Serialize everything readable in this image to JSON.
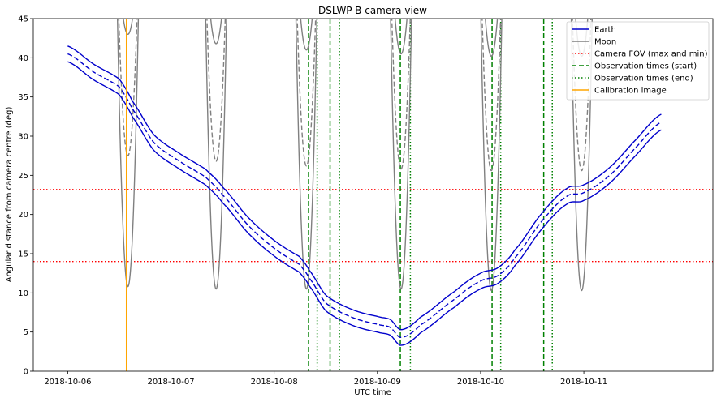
{
  "chart_data": {
    "type": "line",
    "title": "DSLWP-B camera view",
    "xlabel": "UTC time",
    "ylabel": "Angular distance from camera centre (deg)",
    "xlim": [
      "2018-10-05 16:00",
      "2018-10-12 06:00"
    ],
    "ylim": [
      0,
      45
    ],
    "xticks": [
      "2018-10-06",
      "2018-10-07",
      "2018-10-08",
      "2018-10-09",
      "2018-10-10",
      "2018-10-11"
    ],
    "yticks": [
      0,
      5,
      10,
      15,
      20,
      25,
      30,
      35,
      40,
      45
    ],
    "grid": false,
    "legend_position": "top-right",
    "legend": [
      {
        "label": "Earth",
        "color": "#0000cc",
        "style": "solid"
      },
      {
        "label": "Moon",
        "color": "#808080",
        "style": "solid"
      },
      {
        "label": "Camera FOV (max and min)",
        "color": "#ff0000",
        "style": "dotted"
      },
      {
        "label": "Observation times (start)",
        "color": "#008000",
        "style": "dashed"
      },
      {
        "label": "Observation times (end)",
        "color": "#008000",
        "style": "dotted"
      },
      {
        "label": "Calibration image",
        "color": "#ffa500",
        "style": "solid"
      }
    ],
    "camera_fov_deg": [
      23.2,
      14.0
    ],
    "calibration_image_time": "2018-10-06 13:40",
    "observation_start_times": [
      "2018-10-08 08:00",
      "2018-10-08 13:00",
      "2018-10-09 05:20",
      "2018-10-10 02:40",
      "2018-10-10 14:40"
    ],
    "observation_end_times": [
      "2018-10-08 10:00",
      "2018-10-08 15:10",
      "2018-10-09 07:40",
      "2018-10-10 04:40",
      "2018-10-10 16:40"
    ],
    "earth_centre": [
      [
        "2018-10-06 00:00",
        40.5
      ],
      [
        "2018-10-06 06:00",
        38.2
      ],
      [
        "2018-10-06 12:00",
        36.3
      ],
      [
        "2018-10-06 15:00",
        33.5
      ],
      [
        "2018-10-06 20:00",
        29.2
      ],
      [
        "2018-10-07 02:00",
        26.8
      ],
      [
        "2018-10-07 08:00",
        24.8
      ],
      [
        "2018-10-07 12:00",
        22.5
      ],
      [
        "2018-10-07 18:00",
        18.6
      ],
      [
        "2018-10-08 00:00",
        15.7
      ],
      [
        "2018-10-08 06:00",
        13.6
      ],
      [
        "2018-10-08 08:00",
        12.0
      ],
      [
        "2018-10-08 12:00",
        8.7
      ],
      [
        "2018-10-08 18:00",
        6.9
      ],
      [
        "2018-10-09 00:00",
        6.0
      ],
      [
        "2018-10-09 03:00",
        5.6
      ],
      [
        "2018-10-09 05:30",
        4.3
      ],
      [
        "2018-10-09 10:00",
        5.9
      ],
      [
        "2018-10-09 18:00",
        9.2
      ],
      [
        "2018-10-10 00:00",
        11.5
      ],
      [
        "2018-10-10 04:00",
        12.2
      ],
      [
        "2018-10-10 08:00",
        14.5
      ],
      [
        "2018-10-10 14:00",
        19.0
      ],
      [
        "2018-10-10 20:00",
        22.3
      ],
      [
        "2018-10-11 00:00",
        22.8
      ],
      [
        "2018-10-11 06:00",
        25.0
      ],
      [
        "2018-10-11 12:00",
        28.5
      ],
      [
        "2018-10-11 18:00",
        31.8
      ]
    ],
    "earth_band_halfwidth_deg": 1.0,
    "moon_dip_minima": [
      [
        "2018-10-06 14:00",
        10.8
      ],
      [
        "2018-10-07 10:30",
        10.5
      ],
      [
        "2018-10-08 07:30",
        10.5
      ],
      [
        "2018-10-09 05:30",
        10.5
      ],
      [
        "2018-10-10 02:30",
        10.3
      ],
      [
        "2018-10-10 23:30",
        10.3
      ]
    ],
    "moon_dashed_minima": [
      [
        "2018-10-06 14:00",
        27.5
      ],
      [
        "2018-10-07 10:30",
        26.8
      ],
      [
        "2018-10-08 07:30",
        26.2
      ],
      [
        "2018-10-09 05:30",
        25.8
      ],
      [
        "2018-10-10 02:30",
        25.6
      ],
      [
        "2018-10-10 23:30",
        25.6
      ]
    ],
    "moon_outer_minima": [
      [
        "2018-10-06 14:00",
        43.0
      ],
      [
        "2018-10-07 10:30",
        41.8
      ],
      [
        "2018-10-08 07:30",
        41.0
      ],
      [
        "2018-10-09 05:30",
        40.5
      ],
      [
        "2018-10-10 02:30",
        40.2
      ],
      [
        "2018-10-10 23:30",
        40.2
      ]
    ],
    "colors": {
      "earth": "#0000cc",
      "moon": "#808080",
      "fov": "#ff0000",
      "observation": "#008000",
      "calibration": "#ffa500"
    }
  }
}
